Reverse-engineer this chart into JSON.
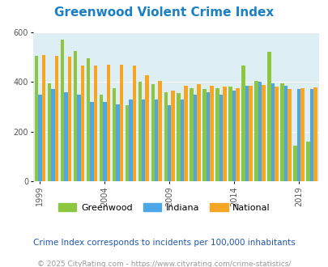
{
  "title": "Greenwood Violent Crime Index",
  "years": [
    1999,
    2000,
    2001,
    2002,
    2003,
    2004,
    2005,
    2006,
    2007,
    2008,
    2009,
    2010,
    2011,
    2012,
    2013,
    2014,
    2015,
    2016,
    2017,
    2018,
    2019,
    2020
  ],
  "greenwood": [
    505,
    395,
    570,
    525,
    495,
    350,
    375,
    305,
    400,
    390,
    360,
    355,
    375,
    370,
    375,
    380,
    465,
    405,
    520,
    395,
    145,
    160
  ],
  "indiana": [
    348,
    370,
    360,
    350,
    320,
    320,
    310,
    330,
    330,
    330,
    305,
    330,
    350,
    360,
    350,
    365,
    385,
    400,
    395,
    385,
    370,
    370
  ],
  "national": [
    508,
    506,
    500,
    465,
    465,
    470,
    470,
    465,
    425,
    405,
    365,
    385,
    390,
    385,
    380,
    375,
    383,
    387,
    382,
    370,
    375,
    378
  ],
  "greenwood_color": "#8dc63f",
  "indiana_color": "#4da6e8",
  "national_color": "#f5a623",
  "bg_color": "#ddeef5",
  "ylim": [
    0,
    600
  ],
  "yticks": [
    0,
    200,
    400,
    600
  ],
  "xlabel_ticks": [
    1999,
    2004,
    2009,
    2014,
    2019
  ],
  "subtitle": "Crime Index corresponds to incidents per 100,000 inhabitants",
  "footer": "© 2025 CityRating.com - https://www.cityrating.com/crime-statistics/",
  "title_color": "#1a80c4",
  "subtitle_color": "#2255aa",
  "footer_color": "#999999"
}
